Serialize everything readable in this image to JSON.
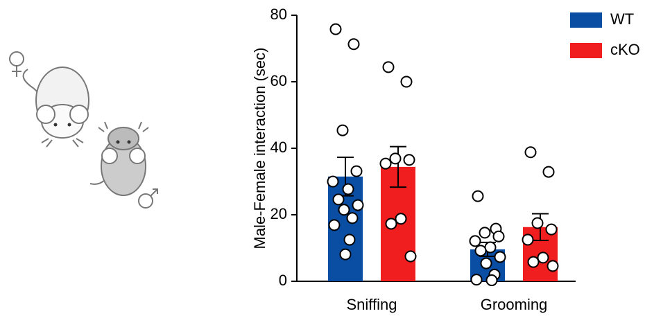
{
  "chart_data": {
    "type": "bar",
    "y_label": "Male-Female interaction (sec)",
    "categories": [
      "Sniffing",
      "Grooming"
    ],
    "ylim": [
      0,
      80
    ],
    "yticks": [
      0,
      20,
      40,
      60,
      80
    ],
    "legend": "top-right",
    "series": [
      {
        "name": "WT",
        "color": "#0a4ea3",
        "values": [
          31.5,
          9.6
        ],
        "errors": [
          5.8,
          2.1
        ],
        "points": [
          [
            75.8,
            71.3,
            45.4,
            33.1,
            30,
            27.7,
            24.6,
            22.9,
            21.5,
            19,
            16.9,
            12.5,
            8.1
          ],
          [
            25.6,
            15.8,
            14.6,
            13.5,
            12.1,
            10.2,
            9.2,
            7.3,
            5.4,
            2,
            0.5,
            0.3
          ]
        ]
      },
      {
        "name": "cKO",
        "color": "#f01e1e",
        "values": [
          34.4,
          16.3
        ],
        "errors": [
          6.1,
          4
        ],
        "points": [
          [
            64.4,
            60,
            36.9,
            36.5,
            35.4,
            18.8,
            17.3,
            7.5
          ],
          [
            38.8,
            32.9,
            17.5,
            15.6,
            12.5,
            7.1,
            5.8,
            4.6
          ]
        ]
      }
    ]
  }
}
